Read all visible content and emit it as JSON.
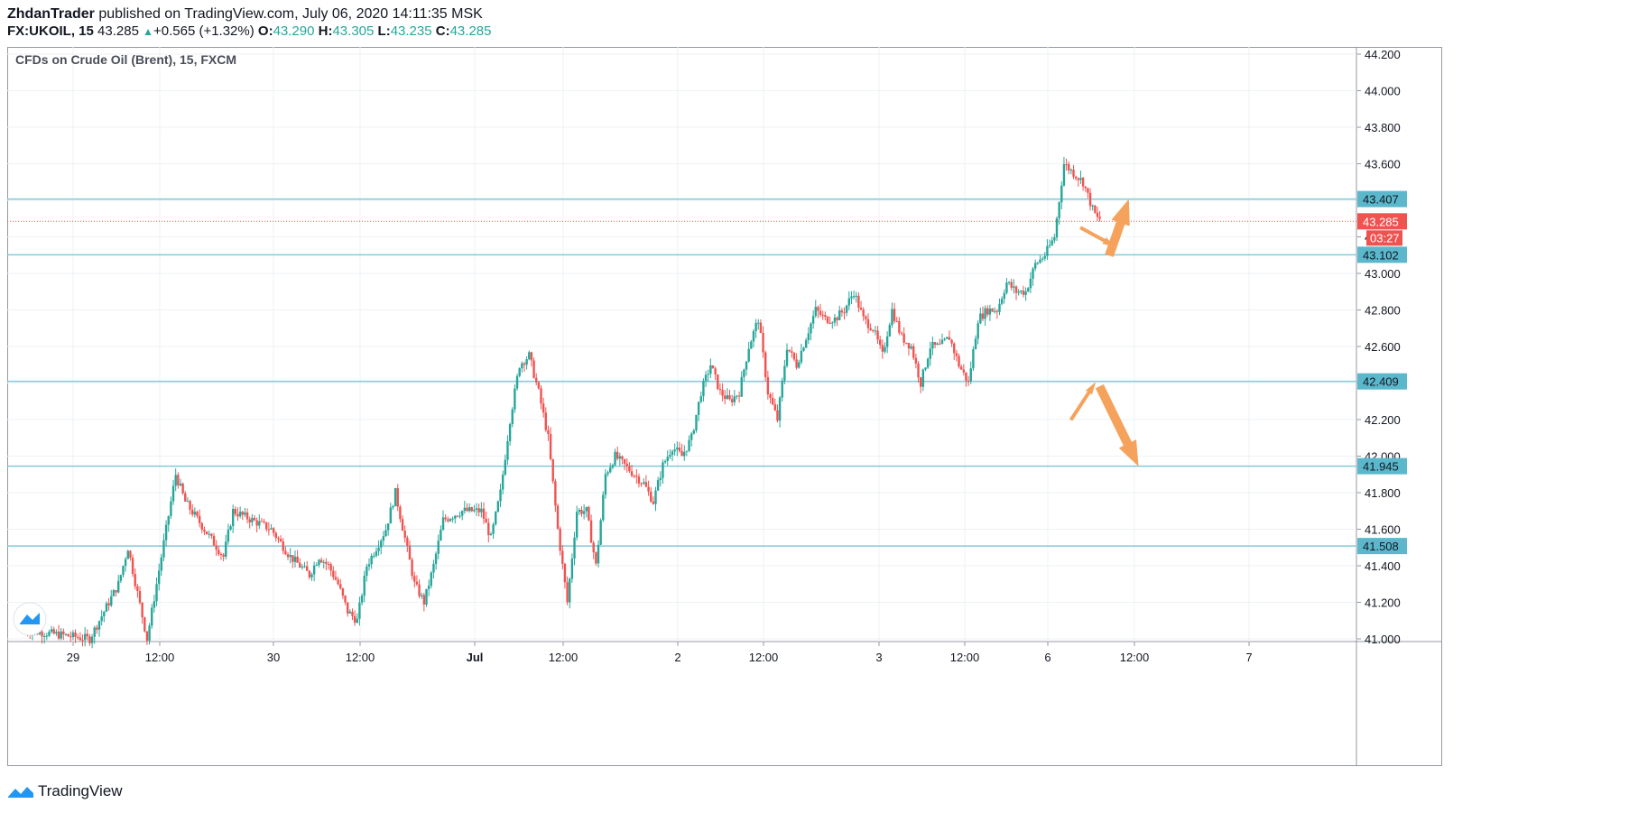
{
  "header": {
    "author": "ZhdanTrader",
    "published_text": "published on TradingView.com, July 06, 2020 14:11:35 MSK",
    "symbol": "FX:UKOIL, 15",
    "last": "43.285",
    "change": "+0.565 (+1.32%)",
    "o_label": "O:",
    "o_value": "43.290",
    "h_label": "H:",
    "h_value": "43.305",
    "l_label": "L:",
    "l_value": "43.235",
    "c_label": "C:",
    "c_value": "43.285"
  },
  "footer": {
    "brand": "TradingView"
  },
  "chart_data": {
    "type": "candlestick",
    "title": "CFDs on Crude Oil (Brent), 15, FXCM",
    "ylim": [
      41.0,
      44.25
    ],
    "y_ticks": [
      "41.000",
      "41.200",
      "41.400",
      "41.600",
      "41.800",
      "42.000",
      "42.200",
      "42.400",
      "42.600",
      "42.800",
      "43.000",
      "43.200",
      "43.400",
      "43.600",
      "43.800",
      "44.000",
      "44.200"
    ],
    "x_ticks": [
      "29",
      "12:00",
      "30",
      "12:00",
      "Jul",
      "12:00",
      "2",
      "12:00",
      "3",
      "12:00",
      "6",
      "12:00",
      "7"
    ],
    "horizontal_levels": [
      43.407,
      43.102,
      42.409,
      41.945,
      41.508
    ],
    "current_price": {
      "label": "43.285",
      "value": 43.285,
      "countdown": "03:27"
    },
    "price_path": [
      [
        0,
        41.05
      ],
      [
        7,
        41.0
      ],
      [
        10,
        41.3
      ],
      [
        11,
        41.5
      ],
      [
        13,
        41.0
      ],
      [
        15,
        41.6
      ],
      [
        16,
        41.9
      ],
      [
        17,
        41.75
      ],
      [
        19,
        41.6
      ],
      [
        21,
        41.45
      ],
      [
        22,
        41.7
      ],
      [
        24,
        41.65
      ],
      [
        26,
        41.6
      ],
      [
        28,
        41.45
      ],
      [
        30,
        41.35
      ],
      [
        31,
        41.45
      ],
      [
        32,
        41.4
      ],
      [
        33,
        41.3
      ],
      [
        34,
        41.15
      ],
      [
        35,
        41.1
      ],
      [
        36,
        41.4
      ],
      [
        38,
        41.6
      ],
      [
        39,
        41.8
      ],
      [
        40,
        41.55
      ],
      [
        41,
        41.3
      ],
      [
        42,
        41.2
      ],
      [
        43,
        41.4
      ],
      [
        44,
        41.65
      ],
      [
        46,
        41.7
      ],
      [
        48,
        41.7
      ],
      [
        49,
        41.55
      ],
      [
        50,
        41.8
      ],
      [
        51,
        42.2
      ],
      [
        52,
        42.5
      ],
      [
        53,
        42.55
      ],
      [
        54,
        42.35
      ],
      [
        55,
        42.1
      ],
      [
        56,
        41.6
      ],
      [
        57,
        41.2
      ],
      [
        58,
        41.7
      ],
      [
        59,
        41.7
      ],
      [
        60,
        41.4
      ],
      [
        61,
        41.9
      ],
      [
        62,
        42.0
      ],
      [
        64,
        41.9
      ],
      [
        65,
        41.85
      ],
      [
        66,
        41.75
      ],
      [
        67,
        41.95
      ],
      [
        68,
        42.05
      ],
      [
        69,
        42.0
      ],
      [
        70,
        42.1
      ],
      [
        71,
        42.35
      ],
      [
        72,
        42.5
      ],
      [
        73,
        42.35
      ],
      [
        74,
        42.3
      ],
      [
        75,
        42.35
      ],
      [
        76,
        42.6
      ],
      [
        77,
        42.75
      ],
      [
        78,
        42.35
      ],
      [
        79,
        42.2
      ],
      [
        80,
        42.6
      ],
      [
        81,
        42.5
      ],
      [
        82,
        42.65
      ],
      [
        83,
        42.8
      ],
      [
        84,
        42.75
      ],
      [
        85,
        42.75
      ],
      [
        86,
        42.8
      ],
      [
        87,
        42.9
      ],
      [
        88,
        42.75
      ],
      [
        89,
        42.7
      ],
      [
        90,
        42.55
      ],
      [
        91,
        42.8
      ],
      [
        92,
        42.65
      ],
      [
        93,
        42.6
      ],
      [
        94,
        42.4
      ],
      [
        95,
        42.6
      ],
      [
        96,
        42.6
      ],
      [
        97,
        42.65
      ],
      [
        98,
        42.5
      ],
      [
        99,
        42.4
      ],
      [
        100,
        42.75
      ],
      [
        101,
        42.8
      ],
      [
        102,
        42.8
      ],
      [
        103,
        42.95
      ],
      [
        104,
        42.9
      ],
      [
        105,
        42.9
      ],
      [
        106,
        43.05
      ],
      [
        107,
        43.1
      ],
      [
        108,
        43.2
      ],
      [
        109,
        43.6
      ],
      [
        110,
        43.55
      ],
      [
        111,
        43.5
      ],
      [
        112,
        43.35
      ],
      [
        112.5,
        43.3
      ]
    ],
    "annotations": [
      {
        "type": "arrow",
        "color": "#f5a25d",
        "from": [
          110.5,
          43.25
        ],
        "to": [
          114,
          43.15
        ],
        "size": "small"
      },
      {
        "type": "arrow",
        "color": "#f5a25d",
        "from": [
          113.5,
          43.1
        ],
        "to": [
          115.5,
          43.4
        ],
        "size": "large"
      },
      {
        "type": "arrow",
        "color": "#f5a25d",
        "from": [
          109.5,
          42.2
        ],
        "to": [
          112,
          42.4
        ],
        "size": "small"
      },
      {
        "type": "arrow",
        "color": "#f5a25d",
        "from": [
          112.5,
          42.38
        ],
        "to": [
          116.5,
          41.95
        ],
        "size": "large"
      }
    ],
    "colors": {
      "up": "#26a69a",
      "down": "#ef5350",
      "level": "#80cbd8",
      "label_bg": "#5bb8cc",
      "arrow": "#f5a25d",
      "grid": "#eef2f5"
    },
    "grid": true
  }
}
